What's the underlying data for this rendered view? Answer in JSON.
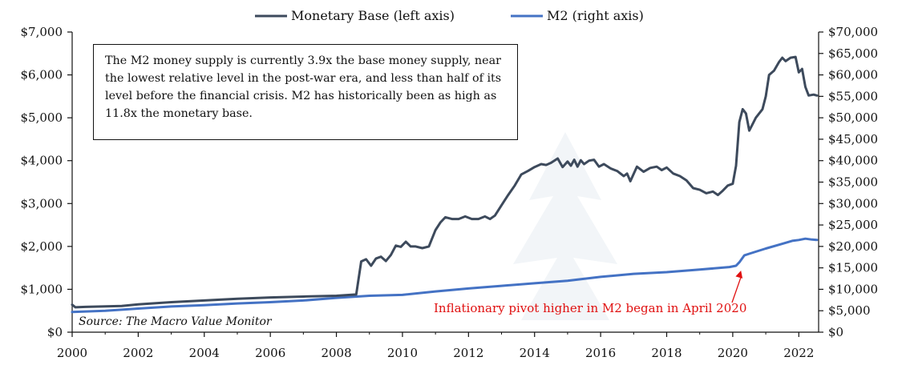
{
  "legend": {
    "monetary_base_label": "Monetary Base (left axis)",
    "m2_label": "M2 (right axis)"
  },
  "annotation": {
    "text": "The M2 money supply is currently 3.9x the base money supply, near the lowest relative level in the post-war era, and less than half of its level before the financial crisis.  M2 has historically been as high as 11.8x the monetary base."
  },
  "source": "Source: The Macro Value Monitor",
  "callout": "Inflationary pivot higher in M2 began in April 2020",
  "colors": {
    "monetary_base": "#3d4a5c",
    "m2": "#4472c4",
    "callout": "#e01010",
    "axis": "#111111"
  },
  "chart_data": {
    "type": "line",
    "title": "",
    "xlabel": "",
    "ylabel_left": "",
    "ylabel_right": "",
    "xlim": [
      2000,
      2022.6
    ],
    "ylim_left": [
      0,
      7000
    ],
    "ylim_right": [
      0,
      70000
    ],
    "x_ticks": [
      2000,
      2002,
      2004,
      2006,
      2008,
      2010,
      2012,
      2014,
      2016,
      2018,
      2020,
      2022
    ],
    "x_tick_labels": [
      "2000",
      "2002",
      "2004",
      "2006",
      "2008",
      "2010",
      "2012",
      "2014",
      "2016",
      "2018",
      "2020",
      "2022"
    ],
    "y_left_ticks": [
      0,
      1000,
      2000,
      3000,
      4000,
      5000,
      6000,
      7000
    ],
    "y_left_tick_labels": [
      "$0",
      "$1,000",
      "$2,000",
      "$3,000",
      "$4,000",
      "$5,000",
      "$6,000",
      "$7,000"
    ],
    "y_right_ticks": [
      0,
      5000,
      10000,
      15000,
      20000,
      25000,
      30000,
      35000,
      40000,
      45000,
      50000,
      55000,
      60000,
      65000,
      70000
    ],
    "y_right_tick_labels": [
      "$0",
      "$5,000",
      "$10,000",
      "$15,000",
      "$20,000",
      "$25,000",
      "$30,000",
      "$35,000",
      "$40,000",
      "$45,000",
      "$50,000",
      "$55,000",
      "$60,000",
      "$65,000",
      "$70,000"
    ],
    "grid": false,
    "legend_position": "top",
    "callout_point": {
      "x": 2020.25,
      "y_right": 15500
    },
    "series": [
      {
        "name": "Monetary Base (left axis)",
        "axis": "left",
        "x": [
          2000.0,
          2000.1,
          2000.4,
          2000.9,
          2001.5,
          2002.0,
          2003.0,
          2004.0,
          2005.0,
          2006.0,
          2007.0,
          2008.0,
          2008.6,
          2008.75,
          2008.9,
          2009.05,
          2009.2,
          2009.35,
          2009.5,
          2009.65,
          2009.8,
          2009.95,
          2010.1,
          2010.25,
          2010.4,
          2010.6,
          2010.8,
          2011.0,
          2011.15,
          2011.3,
          2011.5,
          2011.7,
          2011.9,
          2012.1,
          2012.3,
          2012.5,
          2012.65,
          2012.8,
          2013.0,
          2013.2,
          2013.4,
          2013.6,
          2013.8,
          2014.0,
          2014.2,
          2014.35,
          2014.5,
          2014.7,
          2014.85,
          2015.0,
          2015.1,
          2015.2,
          2015.3,
          2015.4,
          2015.5,
          2015.65,
          2015.8,
          2015.95,
          2016.1,
          2016.3,
          2016.5,
          2016.7,
          2016.8,
          2016.9,
          2017.1,
          2017.3,
          2017.5,
          2017.7,
          2017.85,
          2018.0,
          2018.2,
          2018.4,
          2018.6,
          2018.8,
          2019.0,
          2019.2,
          2019.4,
          2019.55,
          2019.7,
          2019.85,
          2020.0,
          2020.1,
          2020.2,
          2020.3,
          2020.4,
          2020.5,
          2020.6,
          2020.7,
          2020.9,
          2021.0,
          2021.1,
          2021.25,
          2021.4,
          2021.5,
          2021.6,
          2021.75,
          2021.9,
          2022.0,
          2022.1,
          2022.2,
          2022.3,
          2022.45,
          2022.55
        ],
        "values": [
          640,
          580,
          590,
          600,
          610,
          650,
          700,
          740,
          780,
          810,
          830,
          850,
          880,
          1650,
          1700,
          1550,
          1720,
          1760,
          1660,
          1800,
          2020,
          1990,
          2110,
          2000,
          2000,
          1960,
          2000,
          2380,
          2560,
          2680,
          2640,
          2640,
          2700,
          2640,
          2640,
          2700,
          2640,
          2720,
          2960,
          3200,
          3420,
          3680,
          3760,
          3850,
          3920,
          3900,
          3950,
          4050,
          3850,
          3980,
          3880,
          4020,
          3860,
          4010,
          3920,
          4000,
          4020,
          3860,
          3920,
          3820,
          3760,
          3640,
          3700,
          3520,
          3860,
          3740,
          3830,
          3860,
          3780,
          3840,
          3700,
          3640,
          3540,
          3360,
          3320,
          3240,
          3280,
          3200,
          3300,
          3420,
          3460,
          3880,
          4900,
          5200,
          5100,
          4700,
          4850,
          5000,
          5200,
          5500,
          6000,
          6100,
          6300,
          6400,
          6320,
          6400,
          6420,
          6060,
          6140,
          5720,
          5520,
          5540,
          5520
        ]
      },
      {
        "name": "M2 (right axis)",
        "axis": "right",
        "x": [
          2000.0,
          2001.0,
          2002.0,
          2003.0,
          2004.0,
          2005.0,
          2006.0,
          2007.0,
          2008.0,
          2009.0,
          2010.0,
          2011.0,
          2012.0,
          2013.0,
          2014.0,
          2015.0,
          2016.0,
          2017.0,
          2018.0,
          2019.0,
          2019.9,
          2020.1,
          2020.2,
          2020.35,
          2020.5,
          2021.0,
          2021.5,
          2021.8,
          2022.0,
          2022.2,
          2022.4,
          2022.55
        ],
        "values": [
          4700,
          5000,
          5500,
          6000,
          6300,
          6700,
          7000,
          7400,
          8000,
          8500,
          8700,
          9500,
          10200,
          10800,
          11400,
          12000,
          12900,
          13600,
          14000,
          14600,
          15200,
          15500,
          16300,
          17900,
          18300,
          19500,
          20600,
          21300,
          21500,
          21800,
          21600,
          21500
        ]
      }
    ]
  }
}
